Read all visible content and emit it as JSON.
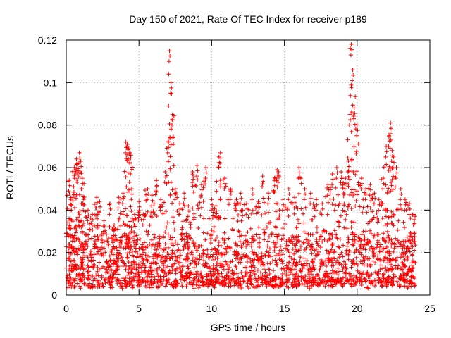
{
  "chart_data": {
    "type": "scatter",
    "title": "Day 150 of 2021, Rate Of TEC Index for receiver p189",
    "xlabel": "GPS time / hours",
    "ylabel": "ROTI / TECUs",
    "xlim": [
      0,
      25
    ],
    "ylim": [
      0,
      0.12
    ],
    "x_ticks": [
      0,
      5,
      10,
      15,
      20,
      25
    ],
    "x_tick_labels": [
      "0",
      "5",
      "10",
      "15",
      "20",
      "25"
    ],
    "y_ticks": [
      0,
      0.02,
      0.04,
      0.06,
      0.08,
      0.1,
      0.12
    ],
    "y_tick_labels": [
      "0",
      "0.02",
      "0.04",
      "0.06",
      "0.08",
      "0.1",
      "0.12"
    ],
    "grid": true,
    "legend": "none",
    "marker": "+",
    "marker_color": "#ff0000",
    "series": [
      {
        "name": "ROTI",
        "x": [
          0.1,
          0.2,
          0.3,
          0.4,
          0.5,
          0.6,
          0.7,
          0.8,
          0.9,
          1.0,
          1.1,
          1.2,
          1.5,
          1.8,
          2.1,
          2.3,
          2.6,
          3.0,
          3.3,
          3.6,
          3.9,
          4.1,
          4.2,
          4.3,
          4.4,
          4.5,
          4.7,
          5.0,
          5.3,
          5.6,
          5.9,
          6.2,
          6.5,
          6.8,
          7.0,
          7.1,
          7.2,
          7.3,
          7.5,
          7.8,
          8.1,
          8.4,
          8.7,
          9.0,
          9.3,
          9.6,
          10.0,
          10.3,
          10.5,
          10.6,
          10.9,
          11.3,
          11.7,
          12.0,
          12.4,
          12.8,
          13.2,
          13.5,
          13.9,
          14.3,
          14.5,
          14.6,
          14.9,
          15.3,
          15.7,
          16.0,
          16.4,
          16.8,
          17.2,
          17.6,
          18.0,
          18.3,
          18.6,
          18.9,
          19.2,
          19.4,
          19.5,
          19.6,
          19.7,
          19.8,
          20.0,
          20.3,
          20.6,
          20.9,
          21.2,
          21.5,
          21.8,
          22.0,
          22.2,
          22.3,
          22.4,
          22.5,
          22.7,
          23.0,
          23.3,
          23.6,
          23.9
        ],
        "y": [
          0.034,
          0.054,
          0.045,
          0.028,
          0.051,
          0.06,
          0.064,
          0.062,
          0.067,
          0.063,
          0.055,
          0.045,
          0.04,
          0.038,
          0.046,
          0.044,
          0.035,
          0.043,
          0.033,
          0.046,
          0.048,
          0.072,
          0.071,
          0.069,
          0.067,
          0.05,
          0.038,
          0.044,
          0.038,
          0.05,
          0.047,
          0.054,
          0.045,
          0.058,
          0.072,
          0.115,
          0.1,
          0.085,
          0.05,
          0.043,
          0.048,
          0.042,
          0.058,
          0.061,
          0.052,
          0.06,
          0.045,
          0.042,
          0.065,
          0.067,
          0.055,
          0.05,
          0.045,
          0.048,
          0.043,
          0.05,
          0.044,
          0.056,
          0.048,
          0.054,
          0.059,
          0.058,
          0.045,
          0.05,
          0.046,
          0.06,
          0.05,
          0.048,
          0.045,
          0.043,
          0.052,
          0.057,
          0.06,
          0.058,
          0.055,
          0.063,
          0.085,
          0.118,
          0.106,
          0.088,
          0.08,
          0.055,
          0.05,
          0.052,
          0.048,
          0.045,
          0.055,
          0.07,
          0.075,
          0.081,
          0.068,
          0.065,
          0.06,
          0.05,
          0.045,
          0.043,
          0.038
        ],
        "baseline": {
          "typical_range": [
            0.003,
            0.03
          ],
          "note": "dense continuous cloud of points at every epoch across 0-24 h"
        }
      }
    ]
  }
}
